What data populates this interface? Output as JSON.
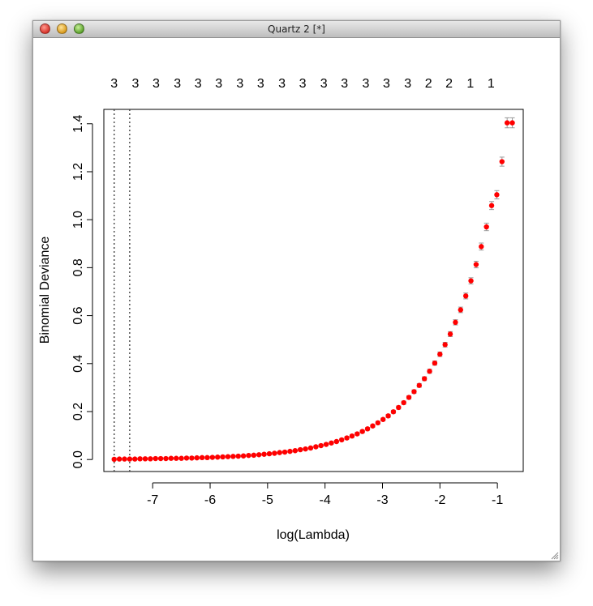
{
  "window": {
    "title": "Quartz 2 [*]"
  },
  "chart_data": {
    "type": "scatter",
    "xlabel": "log(Lambda)",
    "ylabel": "Binomial Deviance",
    "xlim": [
      -7.85,
      -0.55
    ],
    "ylim": [
      -0.05,
      1.46
    ],
    "x_ticks": [
      -7,
      -6,
      -5,
      -4,
      -3,
      -2,
      -1
    ],
    "y_ticks": [
      0.0,
      0.2,
      0.4,
      0.6,
      0.8,
      1.0,
      1.2,
      1.4
    ],
    "y_tick_labels": [
      "0.0",
      "0.2",
      "0.4",
      "0.6",
      "0.8",
      "1.0",
      "1.2",
      "1.4"
    ],
    "top_axis_labels": [
      "3",
      "3",
      "3",
      "3",
      "3",
      "3",
      "3",
      "3",
      "3",
      "3",
      "3",
      "3",
      "3",
      "3",
      "3",
      "2",
      "2",
      "1",
      "1"
    ],
    "top_axis_positions": [
      -7.67,
      -7.3,
      -6.94,
      -6.57,
      -6.21,
      -5.85,
      -5.48,
      -5.12,
      -4.75,
      -4.39,
      -4.02,
      -3.66,
      -3.29,
      -2.93,
      -2.56,
      -2.2,
      -1.84,
      -1.47,
      -1.11
    ],
    "vlines": [
      -7.67,
      -7.4
    ],
    "point_color": "#ff0000",
    "errorbar_color": "#999999",
    "x": [
      -7.67,
      -7.58,
      -7.49,
      -7.4,
      -7.31,
      -7.22,
      -7.13,
      -7.04,
      -6.95,
      -6.86,
      -6.77,
      -6.68,
      -6.59,
      -6.5,
      -6.41,
      -6.32,
      -6.23,
      -6.14,
      -6.05,
      -5.96,
      -5.87,
      -5.78,
      -5.69,
      -5.6,
      -5.51,
      -5.42,
      -5.33,
      -5.24,
      -5.15,
      -5.06,
      -4.97,
      -4.88,
      -4.79,
      -4.7,
      -4.61,
      -4.52,
      -4.43,
      -4.34,
      -4.25,
      -4.16,
      -4.07,
      -3.98,
      -3.89,
      -3.8,
      -3.71,
      -3.62,
      -3.53,
      -3.44,
      -3.35,
      -3.26,
      -3.17,
      -3.08,
      -2.99,
      -2.9,
      -2.81,
      -2.72,
      -2.63,
      -2.54,
      -2.45,
      -2.36,
      -2.27,
      -2.18,
      -2.09,
      -2.0,
      -1.91,
      -1.82,
      -1.73,
      -1.64,
      -1.55,
      -1.46,
      -1.37,
      -1.28,
      -1.19,
      -1.1,
      -1.01,
      -0.92,
      -0.83,
      -0.74
    ],
    "y": [
      0.001,
      0.002,
      0.002,
      0.002,
      0.002,
      0.003,
      0.003,
      0.003,
      0.004,
      0.004,
      0.004,
      0.005,
      0.005,
      0.005,
      0.006,
      0.006,
      0.007,
      0.008,
      0.008,
      0.009,
      0.01,
      0.011,
      0.012,
      0.013,
      0.014,
      0.015,
      0.017,
      0.018,
      0.02,
      0.022,
      0.024,
      0.026,
      0.029,
      0.031,
      0.034,
      0.037,
      0.041,
      0.044,
      0.048,
      0.053,
      0.058,
      0.063,
      0.069,
      0.075,
      0.082,
      0.09,
      0.098,
      0.107,
      0.117,
      0.128,
      0.14,
      0.153,
      0.167,
      0.182,
      0.199,
      0.217,
      0.237,
      0.259,
      0.283,
      0.309,
      0.337,
      0.368,
      0.402,
      0.439,
      0.479,
      0.523,
      0.572,
      0.624,
      0.682,
      0.745,
      0.813,
      0.888,
      0.97,
      1.059,
      1.104,
      1.242,
      1.404,
      1.404
    ]
  }
}
